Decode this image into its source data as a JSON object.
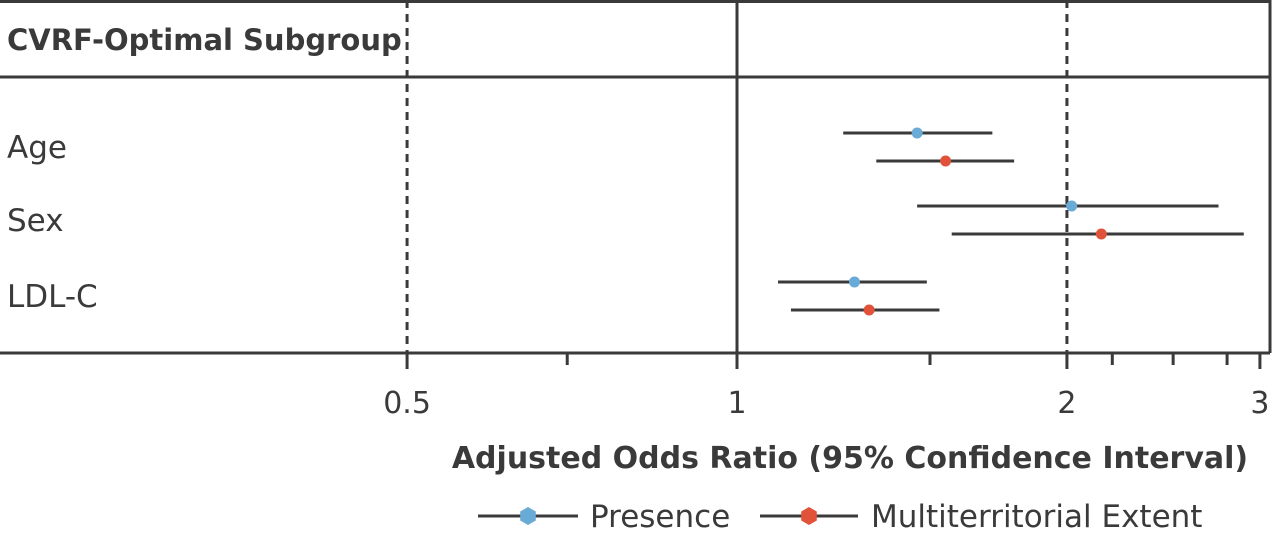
{
  "chart_data": {
    "type": "forest",
    "title": "CVRF-Optimal Subgroup",
    "xlabel": "Adjusted Odds Ratio (95% Confidence Interval)",
    "x_scale": "log",
    "xlim": [
      0.3,
      3
    ],
    "xticks": [
      0.5,
      1,
      2,
      3
    ],
    "xtick_labels": [
      "0.5",
      "1",
      "2",
      "3"
    ],
    "minor_ticks": [
      0.7,
      1.5,
      2.2,
      2.5,
      2.8
    ],
    "reference_lines": [
      {
        "x": 0.5,
        "style": "dashed"
      },
      {
        "x": 1,
        "style": "solid"
      },
      {
        "x": 2,
        "style": "dashed"
      }
    ],
    "categories": [
      "Age",
      "Sex",
      "LDL-C"
    ],
    "series": [
      {
        "name": "Presence",
        "color": "#6aaad6",
        "estimates": [
          1.46,
          2.02,
          1.28
        ],
        "lower": [
          1.25,
          1.46,
          1.09
        ],
        "upper": [
          1.71,
          2.75,
          1.49
        ]
      },
      {
        "name": "Multiterritorial Extent",
        "color": "#e0533a",
        "estimates": [
          1.55,
          2.15,
          1.32
        ],
        "lower": [
          1.34,
          1.57,
          1.12
        ],
        "upper": [
          1.79,
          2.9,
          1.53
        ]
      }
    ],
    "legend_position": "bottom"
  }
}
